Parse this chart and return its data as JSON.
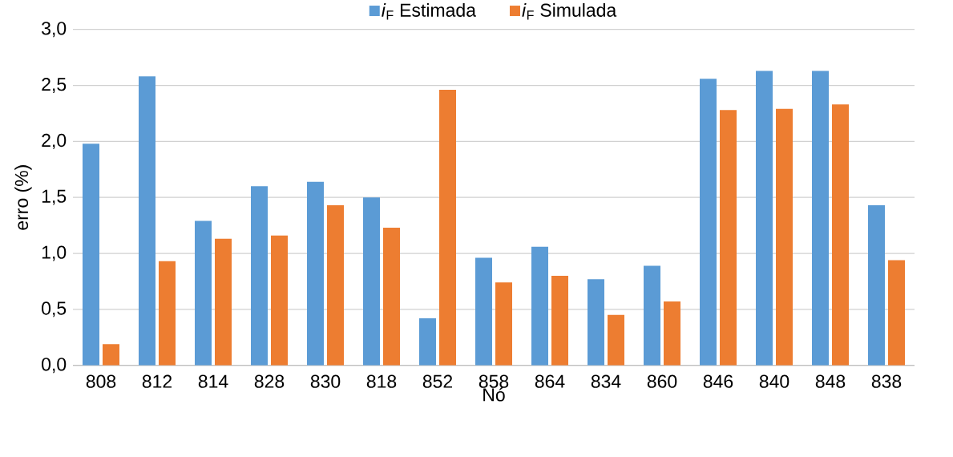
{
  "chart_data": {
    "type": "bar",
    "xlabel": "Nó",
    "ylabel": "erro (%)",
    "categories": [
      "808",
      "812",
      "814",
      "828",
      "830",
      "818",
      "852",
      "858",
      "864",
      "834",
      "860",
      "846",
      "840",
      "848",
      "838"
    ],
    "series": [
      {
        "name": "*i*$_{F}$ Estimada",
        "color": "#5b9bd5",
        "values": [
          1.98,
          2.58,
          1.29,
          1.6,
          1.64,
          1.5,
          0.42,
          0.96,
          1.06,
          0.77,
          0.89,
          2.56,
          2.63,
          2.63,
          1.43
        ]
      },
      {
        "name": "*i*$_{F}$ Simulada",
        "color": "#ed7d31",
        "values": [
          0.19,
          0.93,
          1.13,
          1.16,
          1.43,
          1.23,
          2.46,
          0.74,
          0.8,
          0.45,
          0.57,
          2.28,
          2.29,
          2.33,
          0.94
        ]
      }
    ],
    "ylim": [
      0,
      3
    ],
    "yticks": [
      {
        "value": 0,
        "label": "0,0"
      },
      {
        "value": 0.5,
        "label": "0,5"
      },
      {
        "value": 1,
        "label": "1,0"
      },
      {
        "value": 1.5,
        "label": "1,5"
      },
      {
        "value": 2,
        "label": "2,0"
      },
      {
        "value": 2.5,
        "label": "2,5"
      },
      {
        "value": 3,
        "label": "3,0"
      }
    ],
    "grid": "y",
    "legend": "top"
  }
}
